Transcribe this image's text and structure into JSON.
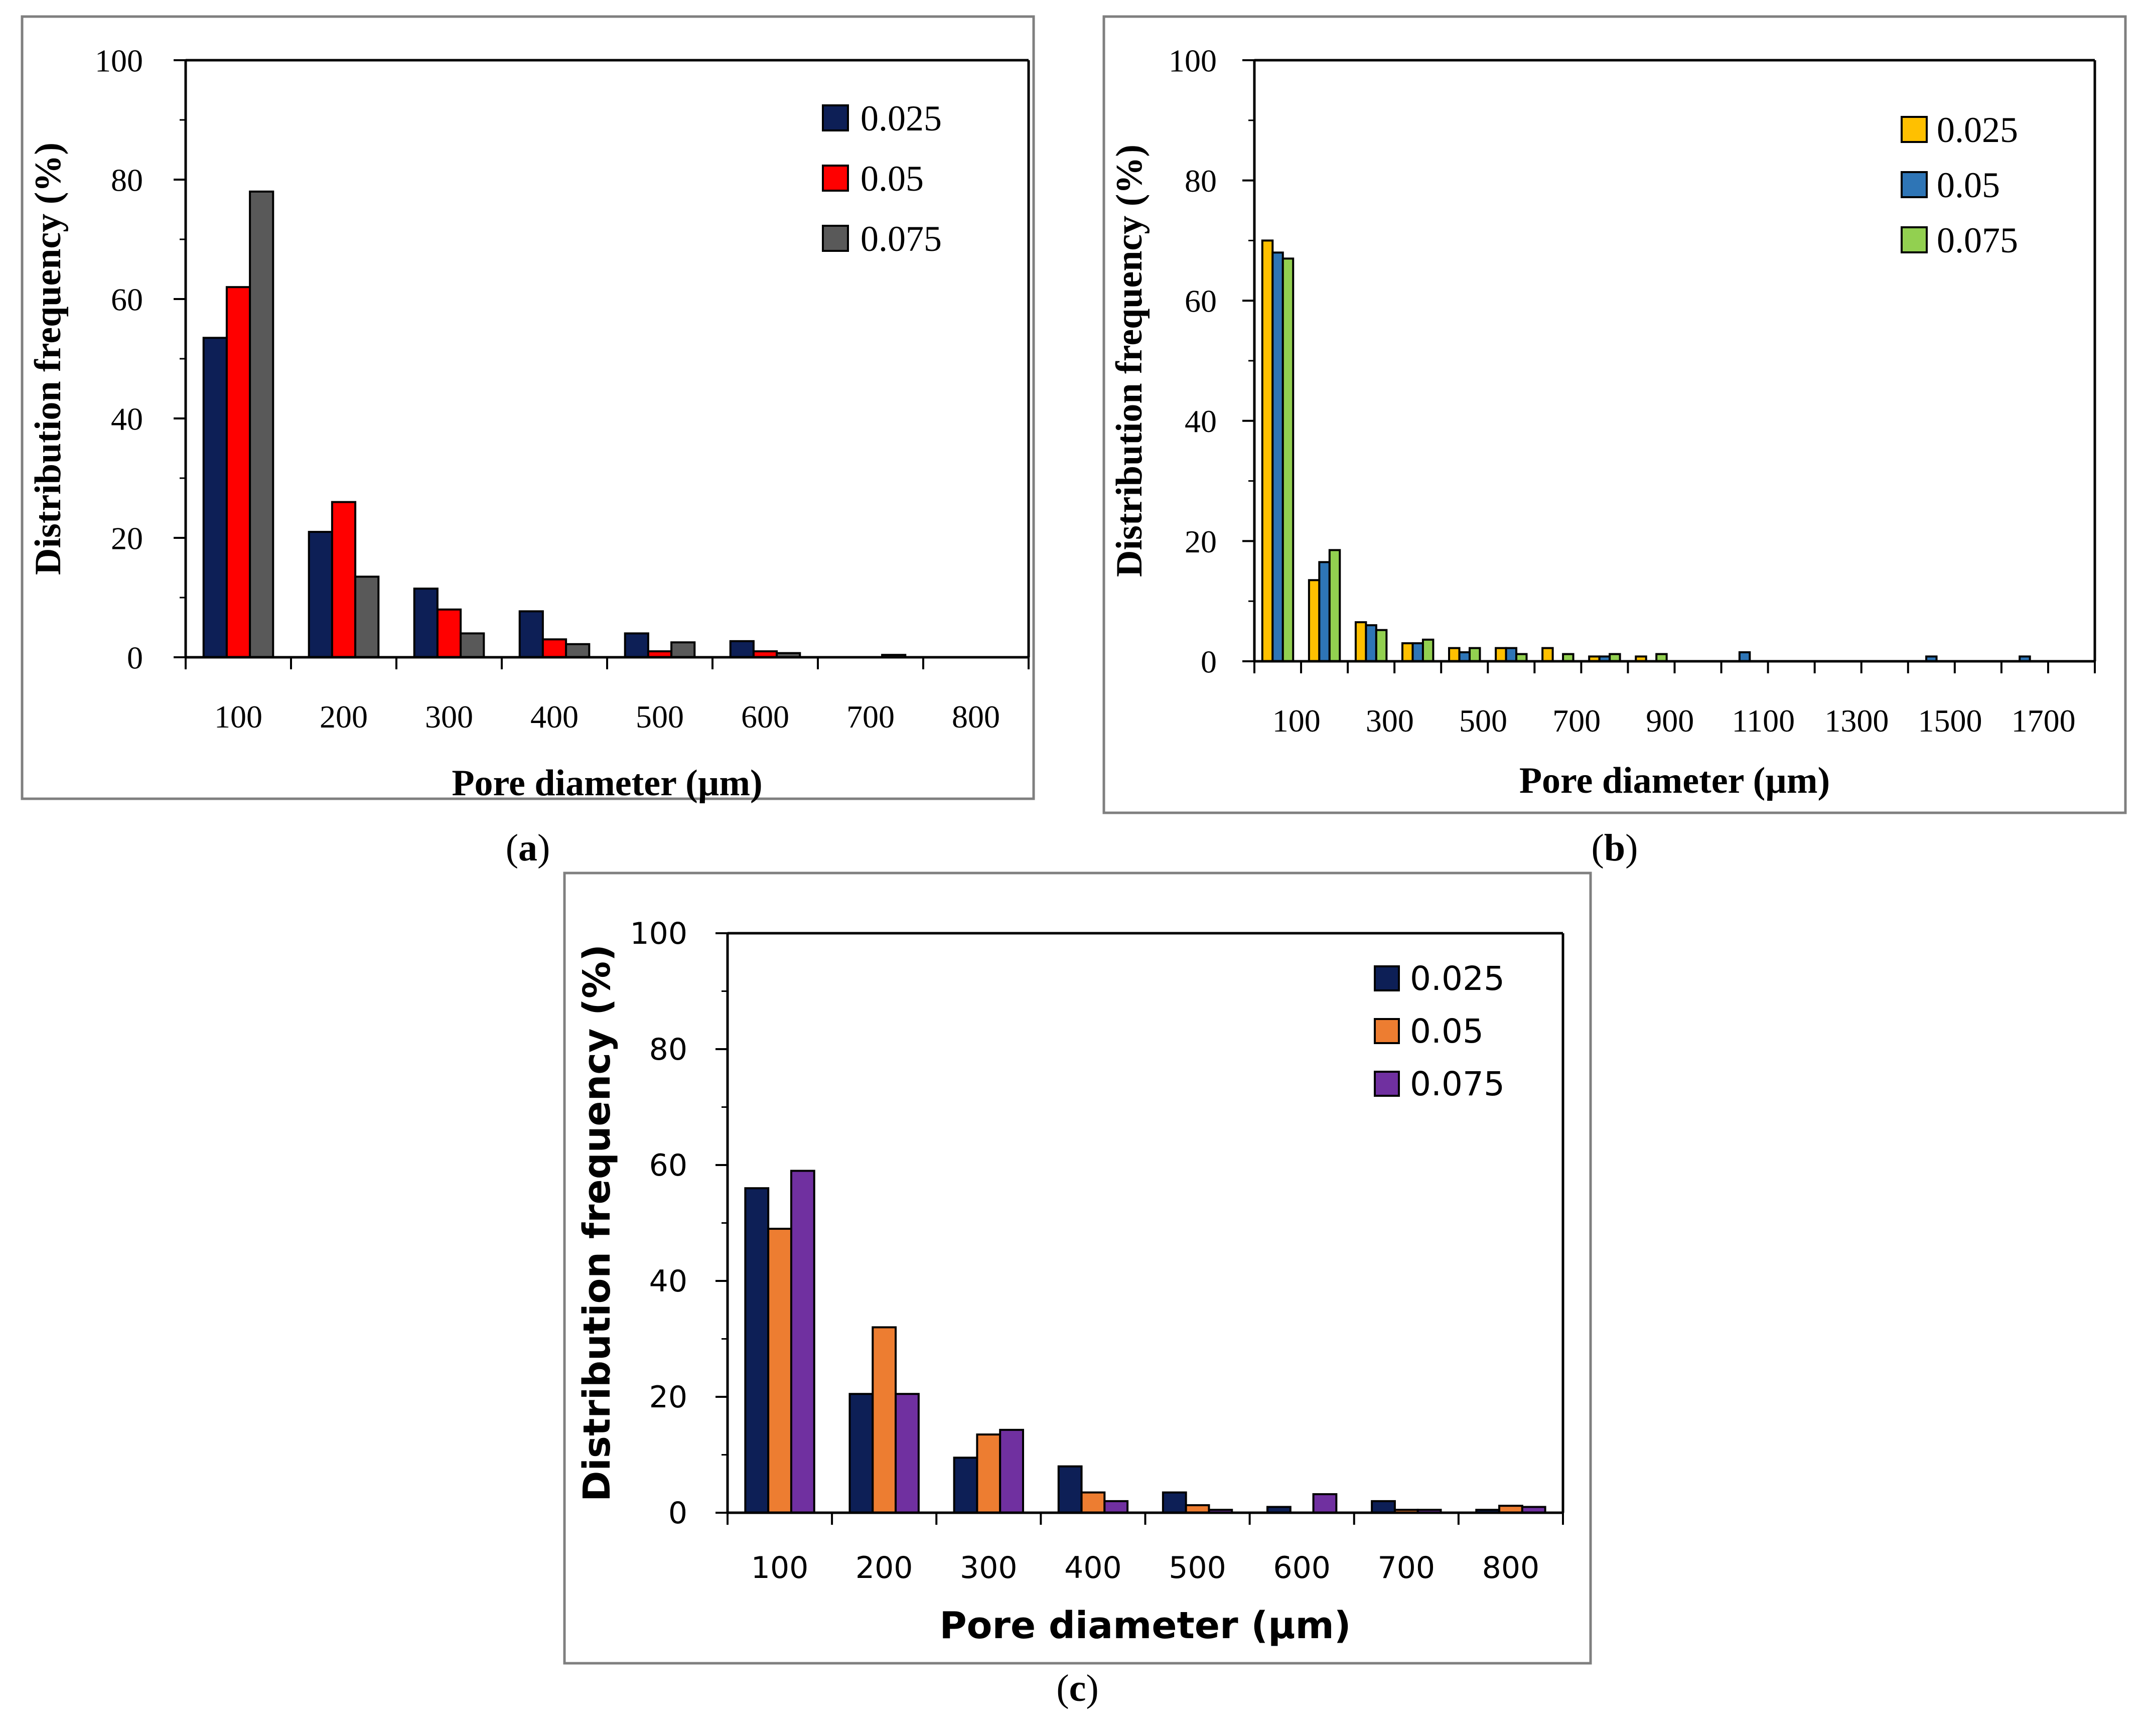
{
  "chart_data": [
    {
      "type": "bar",
      "panel_label": "a",
      "xlabel": "Pore diameter (µm)",
      "ylabel": "Distribution frequency (%)",
      "ylim": [
        0,
        100
      ],
      "yticks": [
        0,
        20,
        40,
        60,
        80,
        100
      ],
      "categories": [
        "100",
        "200",
        "300",
        "400",
        "500",
        "600",
        "700",
        "800"
      ],
      "series": [
        {
          "name": "0.025",
          "color": "#0d1f56",
          "values": [
            53.5,
            21,
            11.5,
            7.7,
            4,
            2.7,
            0,
            0
          ]
        },
        {
          "name": "0.05",
          "color": "#ff0000",
          "values": [
            62,
            26,
            8,
            3,
            1,
            1,
            0,
            0
          ]
        },
        {
          "name": "0.075",
          "color": "#595959",
          "values": [
            78,
            13.5,
            4,
            2.2,
            2.5,
            0.7,
            0.4,
            0
          ]
        }
      ],
      "legend": "top-right"
    },
    {
      "type": "bar",
      "panel_label": "b",
      "xlabel": "Pore diameter (µm)",
      "ylabel": "Distribution frequency (%)",
      "ylim": [
        0,
        100
      ],
      "yticks": [
        0,
        20,
        40,
        60,
        80,
        100
      ],
      "categories": [
        "100",
        "200",
        "300",
        "400",
        "500",
        "600",
        "700",
        "800",
        "900",
        "1000",
        "1100",
        "1200",
        "1300",
        "1400",
        "1500",
        "1600",
        "1700",
        "1800"
      ],
      "tick_labels": [
        "100",
        "300",
        "500",
        "700",
        "900",
        "1100",
        "1300",
        "1500",
        "1700"
      ],
      "series": [
        {
          "name": "0.025",
          "color": "#ffc000",
          "values": [
            70,
            13.5,
            6.5,
            3,
            2.2,
            2.2,
            2.2,
            0.8,
            0.8,
            0,
            0,
            0,
            0,
            0,
            0,
            0,
            0,
            0
          ]
        },
        {
          "name": "0.05",
          "color": "#2e75b6",
          "values": [
            68,
            16.5,
            6,
            3,
            1.5,
            2.2,
            0,
            0.8,
            0,
            0,
            1.5,
            0,
            0,
            0,
            0.8,
            0,
            0.8,
            0
          ]
        },
        {
          "name": "0.075",
          "color": "#92d050",
          "values": [
            67,
            18.5,
            5.2,
            3.6,
            2.2,
            1.2,
            1.2,
            1.2,
            1.2,
            0,
            0,
            0,
            0,
            0,
            0,
            0,
            0,
            0
          ]
        }
      ],
      "legend": "top-right"
    },
    {
      "type": "bar",
      "panel_label": "c",
      "xlabel": "Pore diameter (µm)",
      "ylabel": "Distribution frequency (%)",
      "ylim": [
        0,
        100
      ],
      "yticks": [
        0,
        20,
        40,
        60,
        80,
        100
      ],
      "categories": [
        "100",
        "200",
        "300",
        "400",
        "500",
        "600",
        "700",
        "800"
      ],
      "series": [
        {
          "name": "0.025",
          "color": "#0d1f56",
          "values": [
            56,
            20.5,
            9.5,
            8,
            3.5,
            1,
            2,
            0.5
          ]
        },
        {
          "name": "0.05",
          "color": "#ed7d31",
          "values": [
            49,
            32,
            13.5,
            3.5,
            1.3,
            0,
            0.5,
            1.2
          ]
        },
        {
          "name": "0.075",
          "color": "#7030a0",
          "values": [
            59,
            20.5,
            14.3,
            2,
            0.5,
            3.2,
            0.5,
            1
          ]
        }
      ],
      "legend": "top-right"
    }
  ]
}
